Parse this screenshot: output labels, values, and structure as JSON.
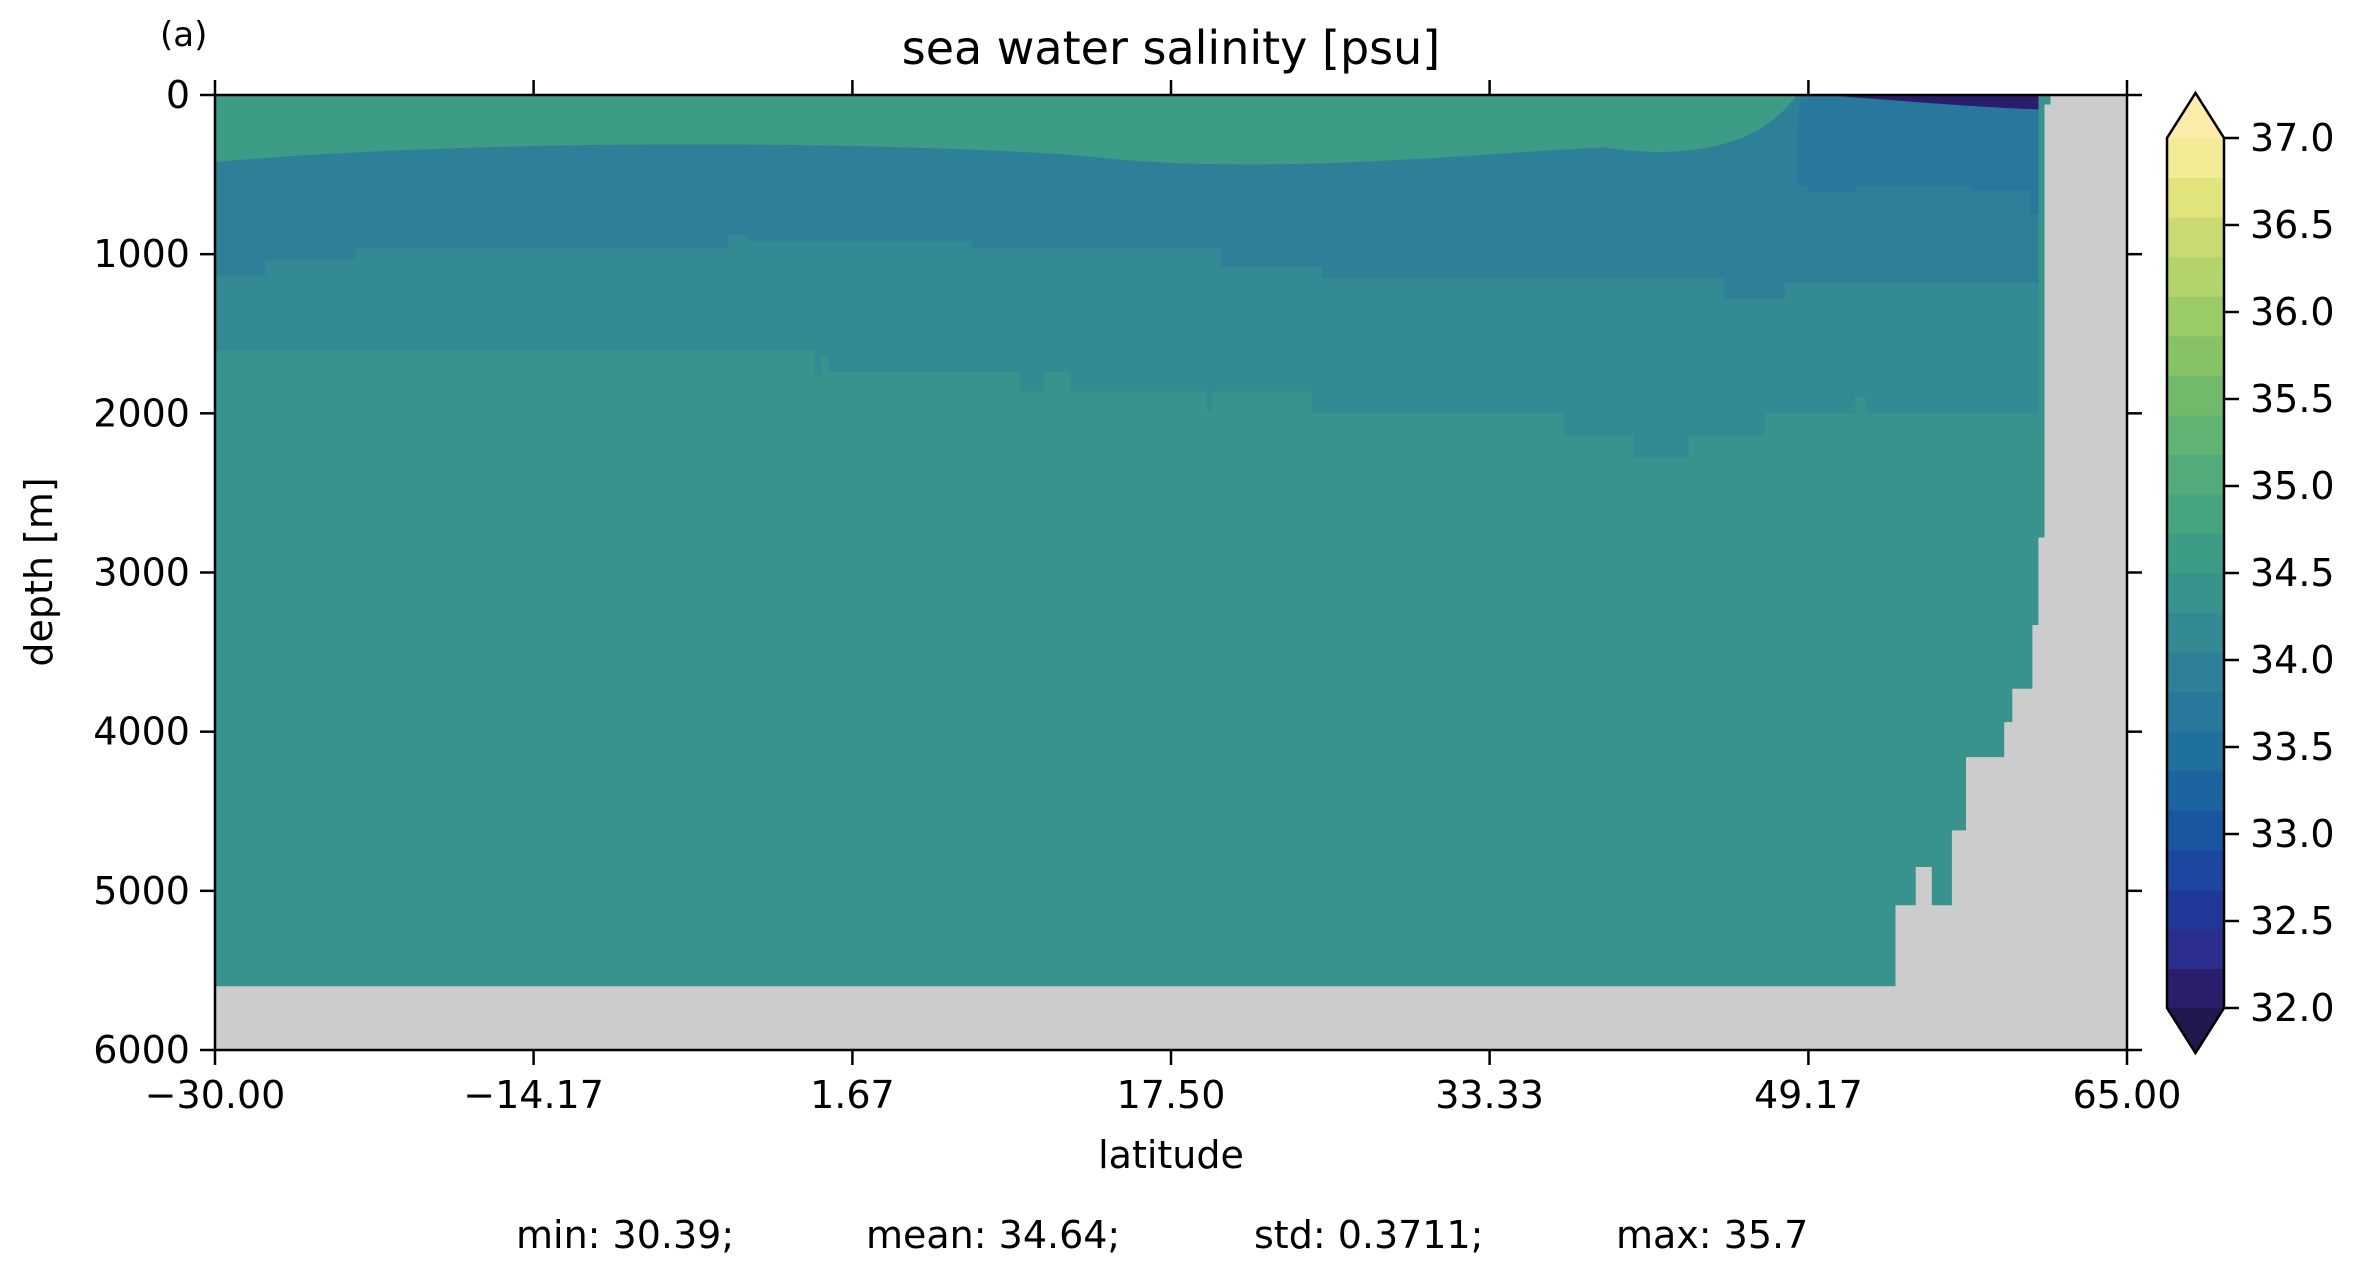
{
  "chart_data": {
    "type": "heatmap",
    "panel_label": "(a)",
    "title": "sea water salinity [psu]",
    "xlabel": "latitude",
    "ylabel": "depth [m]",
    "xlim": [
      -30.0,
      65.0
    ],
    "ylim": [
      6000,
      0
    ],
    "x_ticks": [
      "−30.00",
      "−14.17",
      "1.67",
      "17.50",
      "33.33",
      "49.17",
      "65.00"
    ],
    "x_tick_values": [
      -30.0,
      -14.17,
      1.67,
      17.5,
      33.33,
      49.17,
      65.0
    ],
    "y_ticks": [
      "0",
      "1000",
      "2000",
      "3000",
      "4000",
      "5000",
      "6000"
    ],
    "y_tick_values": [
      0,
      1000,
      2000,
      3000,
      4000,
      5000,
      6000
    ],
    "colorbar": {
      "min": 32.0,
      "max": 37.0,
      "step": 0.25,
      "extend": "both",
      "tick_labels": [
        "32.0",
        "32.5",
        "33.0",
        "33.5",
        "34.0",
        "34.5",
        "35.0",
        "35.5",
        "36.0",
        "36.5",
        "37.0"
      ],
      "tick_values": [
        32.0,
        32.5,
        33.0,
        33.5,
        34.0,
        34.5,
        35.0,
        35.5,
        36.0,
        36.5,
        37.0
      ],
      "colors": [
        "#2a1d6b",
        "#2b2e8c",
        "#21389b",
        "#1c46a0",
        "#1a56a0",
        "#1b649f",
        "#1f709c",
        "#27789a",
        "#2e8098",
        "#338a93",
        "#38938d",
        "#3d9c85",
        "#46a47e",
        "#52ab78",
        "#61b373",
        "#72ba6b",
        "#86c366",
        "#9acb64",
        "#b3d36b",
        "#cad971",
        "#e1e37b",
        "#f3eb95"
      ],
      "under_color": "#22174f",
      "over_color": "#fbeda8"
    },
    "missing_color": "#cccccc",
    "layers": [
      {
        "salinity": 34.625,
        "depth_range": [
          1600,
          5600
        ]
      },
      {
        "salinity": 34.375,
        "depth_range": [
          1000,
          2000
        ]
      },
      {
        "salinity": 34.125,
        "depth_range": [
          300,
          1000
        ]
      },
      {
        "salinity": 34.875,
        "depth_range": [
          0,
          300
        ]
      },
      {
        "salinity": 32.0,
        "depth_range": [
          0,
          80
        ],
        "lat_range": [
          50,
          62
        ]
      }
    ],
    "stats": {
      "min": "min: 30.39;",
      "mean": "mean: 34.64;",
      "std": "std: 0.3711;",
      "max": "max: 35.7"
    }
  }
}
